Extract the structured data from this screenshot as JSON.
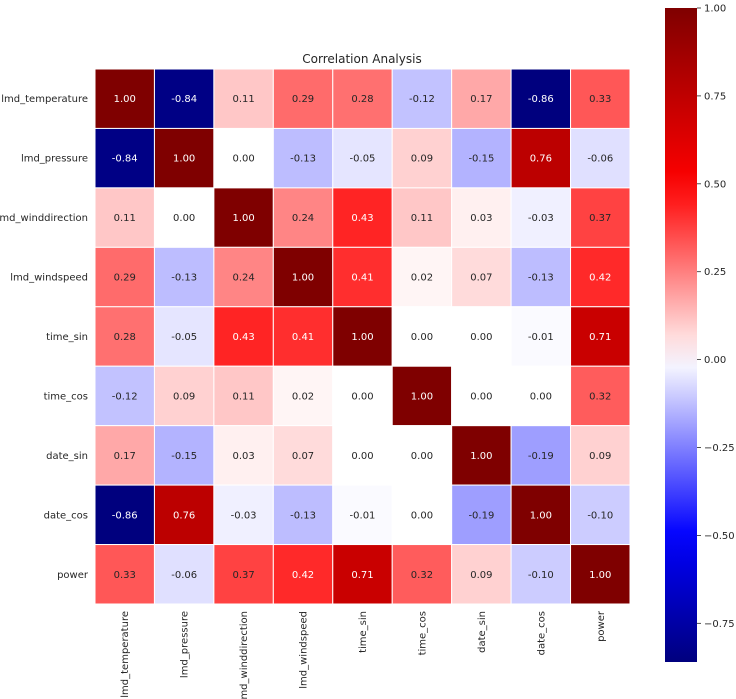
{
  "chart_data": {
    "type": "heatmap",
    "title": "Correlation Analysis",
    "xlabel": "",
    "ylabel": "",
    "labels": [
      "lmd_temperature",
      "lmd_pressure",
      "lmd_winddirection",
      "lmd_windspeed",
      "time_sin",
      "time_cos",
      "date_sin",
      "date_cos",
      "power"
    ],
    "matrix": [
      [
        1.0,
        -0.84,
        0.11,
        0.29,
        0.28,
        -0.12,
        0.17,
        -0.86,
        0.33
      ],
      [
        -0.84,
        1.0,
        -0.0,
        -0.13,
        -0.05,
        0.09,
        -0.15,
        0.76,
        -0.06
      ],
      [
        0.11,
        -0.0,
        1.0,
        0.24,
        0.43,
        0.11,
        0.03,
        -0.03,
        0.37
      ],
      [
        0.29,
        -0.13,
        0.24,
        1.0,
        0.41,
        0.02,
        0.07,
        -0.13,
        0.42
      ],
      [
        0.28,
        -0.05,
        0.43,
        0.41,
        1.0,
        0.0,
        0.0,
        -0.01,
        0.71
      ],
      [
        -0.12,
        0.09,
        0.11,
        0.02,
        0.0,
        1.0,
        -0.0,
        0.0,
        0.32
      ],
      [
        0.17,
        -0.15,
        0.03,
        0.07,
        0.0,
        -0.0,
        1.0,
        -0.19,
        0.09
      ],
      [
        -0.86,
        0.76,
        -0.03,
        -0.13,
        -0.01,
        0.0,
        -0.19,
        1.0,
        -0.1
      ],
      [
        0.33,
        -0.06,
        0.37,
        0.42,
        0.71,
        0.32,
        0.09,
        -0.1,
        1.0
      ]
    ],
    "value_format": "2 decimals",
    "colormap": "seismic",
    "colormap_stops": [
      "#00004c",
      "#0000ff",
      "#ffffff",
      "#ff0000",
      "#7f0000"
    ],
    "color_range": [
      -0.86,
      1.0
    ],
    "grid_line_color": "#ffffff",
    "colorbar": {
      "position": "right",
      "ticks": [
        1.0,
        0.75,
        0.5,
        0.25,
        0.0,
        -0.25,
        -0.5,
        -0.75
      ],
      "tick_labels": [
        "1.00",
        "0.75",
        "0.50",
        "0.25",
        "0.00",
        "−0.25",
        "−0.50",
        "−0.75"
      ]
    }
  }
}
